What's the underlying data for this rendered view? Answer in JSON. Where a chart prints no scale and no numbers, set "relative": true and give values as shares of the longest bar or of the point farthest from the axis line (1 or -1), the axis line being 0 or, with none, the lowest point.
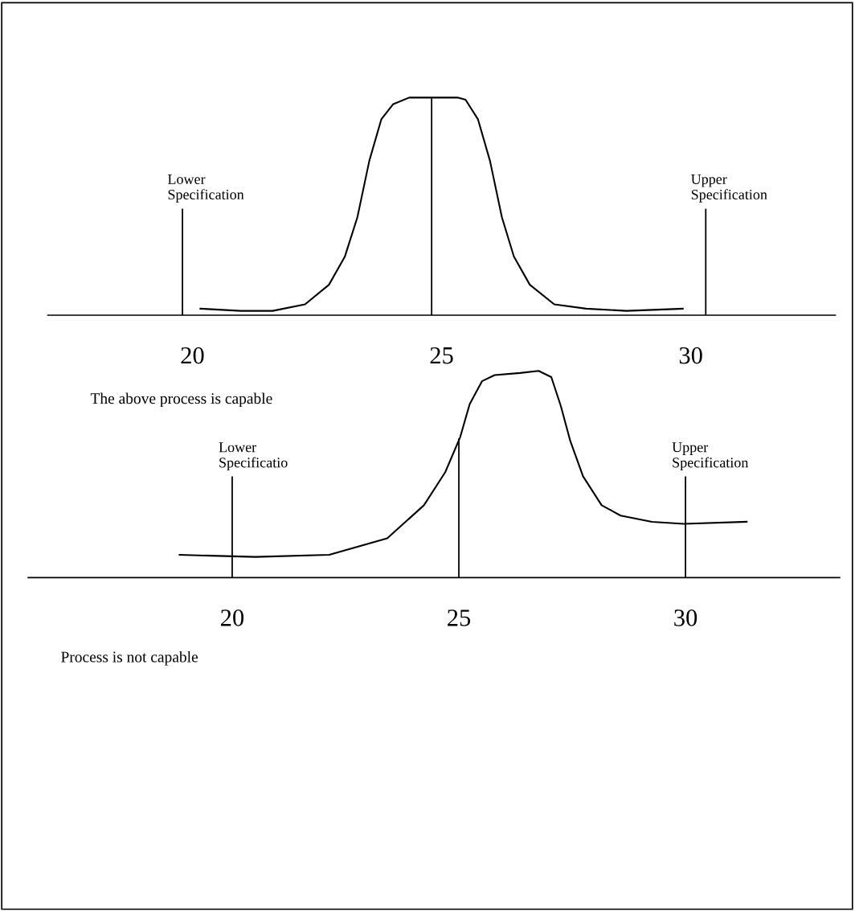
{
  "chart_data": [
    {
      "type": "line",
      "relative": true,
      "x": [
        20.16,
        20.97,
        21.61,
        22.26,
        22.74,
        23.06,
        23.31,
        23.55,
        23.79,
        24.03,
        24.35,
        24.84,
        25.32,
        25.48,
        25.73,
        25.97,
        26.21,
        26.45,
        26.77,
        27.26,
        27.9,
        28.71,
        29.84
      ],
      "series": [
        {
          "color": "#000000",
          "values": [
            0.03,
            0.02,
            0.02,
            0.05,
            0.14,
            0.27,
            0.45,
            0.71,
            0.9,
            0.97,
            1.0,
            1.0,
            1.0,
            0.99,
            0.9,
            0.71,
            0.45,
            0.27,
            0.14,
            0.05,
            0.03,
            0.02,
            0.03
          ]
        }
      ],
      "xlim": [
        17.1,
        32.9
      ],
      "xticks": [
        20,
        25,
        30
      ],
      "tick_labels": "x",
      "grid": false,
      "legend": false,
      "marker": "none",
      "line_style": "solid",
      "ref_lines": [
        {
          "axis": "x",
          "value": 19.8,
          "label": "Lower\nSpecification",
          "color": "#000000"
        },
        {
          "axis": "x",
          "value": 24.8,
          "color": "#000000"
        },
        {
          "axis": "x",
          "value": 30.3,
          "label": "Upper\nSpecification",
          "color": "#000000"
        }
      ],
      "annotations": [
        "The above process is capable"
      ]
    },
    {
      "type": "line",
      "relative": true,
      "x": [
        18.84,
        20.51,
        22.14,
        23.42,
        24.23,
        24.7,
        25.03,
        25.24,
        25.51,
        25.79,
        26.35,
        26.76,
        27.04,
        27.25,
        27.46,
        27.74,
        28.15,
        28.57,
        29.26,
        29.96,
        31.35
      ],
      "series": [
        {
          "color": "#000000",
          "values": [
            0.11,
            0.1,
            0.11,
            0.19,
            0.35,
            0.51,
            0.68,
            0.84,
            0.95,
            0.98,
            0.99,
            1.0,
            0.97,
            0.83,
            0.66,
            0.49,
            0.35,
            0.3,
            0.27,
            0.26,
            0.27
          ]
        }
      ],
      "xlim": [
        15.5,
        33.4
      ],
      "xticks": [
        20,
        25,
        30
      ],
      "tick_labels": "x",
      "grid": false,
      "legend": false,
      "marker": "none",
      "line_style": "solid",
      "ref_lines": [
        {
          "axis": "x",
          "value": 20,
          "label": "Lower\nSpecificatio",
          "color": "#000000"
        },
        {
          "axis": "x",
          "value": 25,
          "color": "#000000"
        },
        {
          "axis": "x",
          "value": 30,
          "label": "Upper\nSpecification",
          "color": "#000000"
        }
      ],
      "annotations": [
        "Process is not capable"
      ]
    }
  ]
}
